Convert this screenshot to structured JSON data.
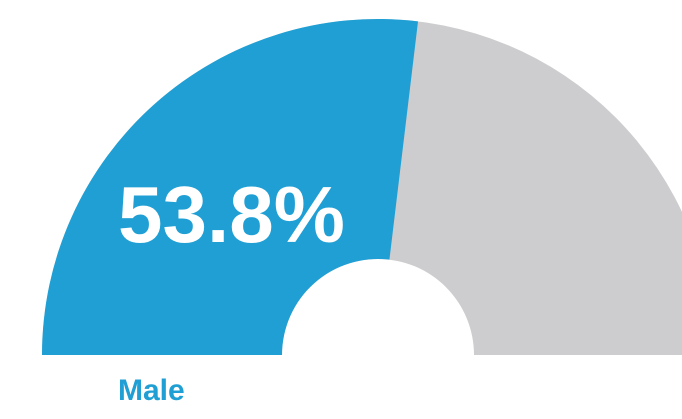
{
  "chart_data": {
    "type": "gauge",
    "categories": [
      "Male"
    ],
    "values": [
      53.8
    ],
    "value_labels": [
      "53.8%"
    ],
    "color": "#1f9fd4",
    "track_color": "#cdcdcf",
    "ylim": [
      0,
      100
    ]
  }
}
